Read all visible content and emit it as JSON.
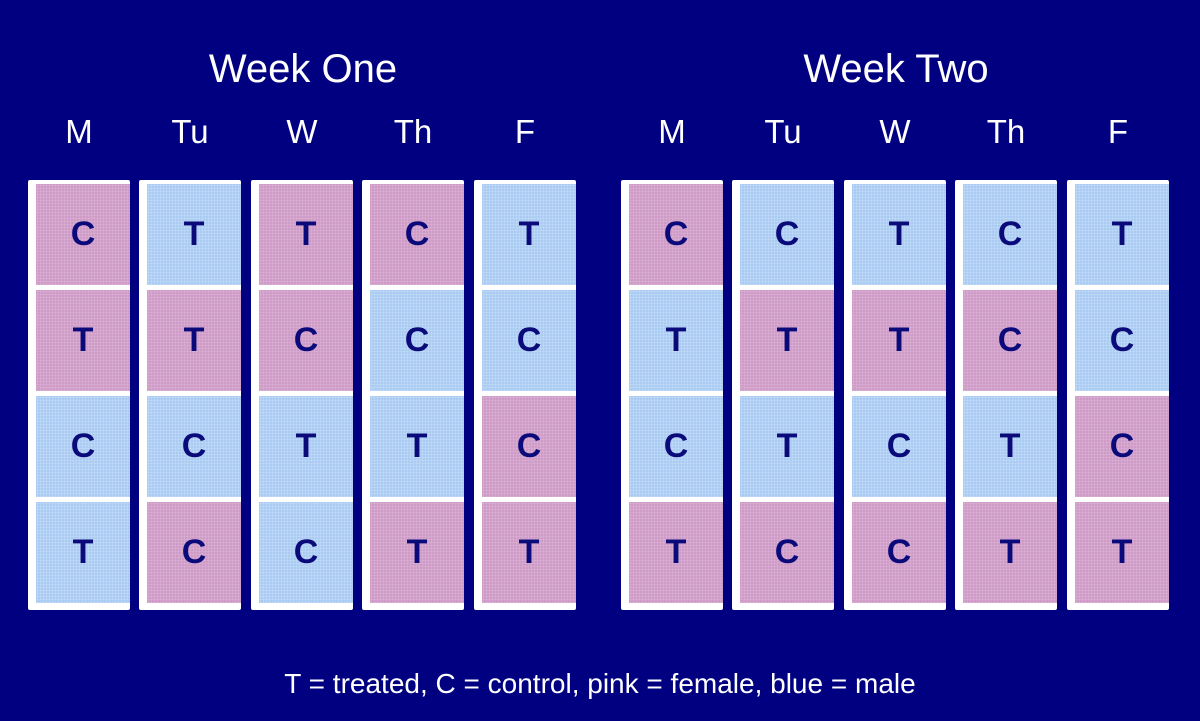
{
  "colors": {
    "background": "#000080",
    "pink": "#cf9bc8",
    "blue": "#a9cbf3",
    "cell_text": "#0a0a7a",
    "box_border": "#ffffff"
  },
  "weeks": [
    {
      "title": "Week One",
      "days": [
        {
          "label": "M",
          "cells": [
            {
              "letter": "C",
              "sex": "pink"
            },
            {
              "letter": "T",
              "sex": "pink"
            },
            {
              "letter": "C",
              "sex": "blue"
            },
            {
              "letter": "T",
              "sex": "blue"
            }
          ]
        },
        {
          "label": "Tu",
          "cells": [
            {
              "letter": "T",
              "sex": "blue"
            },
            {
              "letter": "T",
              "sex": "pink"
            },
            {
              "letter": "C",
              "sex": "blue"
            },
            {
              "letter": "C",
              "sex": "pink"
            }
          ]
        },
        {
          "label": "W",
          "cells": [
            {
              "letter": "T",
              "sex": "pink"
            },
            {
              "letter": "C",
              "sex": "pink"
            },
            {
              "letter": "T",
              "sex": "blue"
            },
            {
              "letter": "C",
              "sex": "blue"
            }
          ]
        },
        {
          "label": "Th",
          "cells": [
            {
              "letter": "C",
              "sex": "pink"
            },
            {
              "letter": "C",
              "sex": "blue"
            },
            {
              "letter": "T",
              "sex": "blue"
            },
            {
              "letter": "T",
              "sex": "pink"
            }
          ]
        },
        {
          "label": "F",
          "cells": [
            {
              "letter": "T",
              "sex": "blue"
            },
            {
              "letter": "C",
              "sex": "blue"
            },
            {
              "letter": "C",
              "sex": "pink"
            },
            {
              "letter": "T",
              "sex": "pink"
            }
          ]
        }
      ]
    },
    {
      "title": "Week Two",
      "days": [
        {
          "label": "M",
          "cells": [
            {
              "letter": "C",
              "sex": "pink"
            },
            {
              "letter": "T",
              "sex": "blue"
            },
            {
              "letter": "C",
              "sex": "blue"
            },
            {
              "letter": "T",
              "sex": "pink"
            }
          ]
        },
        {
          "label": "Tu",
          "cells": [
            {
              "letter": "C",
              "sex": "blue"
            },
            {
              "letter": "T",
              "sex": "pink"
            },
            {
              "letter": "T",
              "sex": "blue"
            },
            {
              "letter": "C",
              "sex": "pink"
            }
          ]
        },
        {
          "label": "W",
          "cells": [
            {
              "letter": "T",
              "sex": "blue"
            },
            {
              "letter": "T",
              "sex": "pink"
            },
            {
              "letter": "C",
              "sex": "blue"
            },
            {
              "letter": "C",
              "sex": "pink"
            }
          ]
        },
        {
          "label": "Th",
          "cells": [
            {
              "letter": "C",
              "sex": "blue"
            },
            {
              "letter": "C",
              "sex": "pink"
            },
            {
              "letter": "T",
              "sex": "blue"
            },
            {
              "letter": "T",
              "sex": "pink"
            }
          ]
        },
        {
          "label": "F",
          "cells": [
            {
              "letter": "T",
              "sex": "blue"
            },
            {
              "letter": "C",
              "sex": "blue"
            },
            {
              "letter": "C",
              "sex": "pink"
            },
            {
              "letter": "T",
              "sex": "pink"
            }
          ]
        }
      ]
    }
  ],
  "legend": "T = treated, C = control, pink = female, blue = male"
}
